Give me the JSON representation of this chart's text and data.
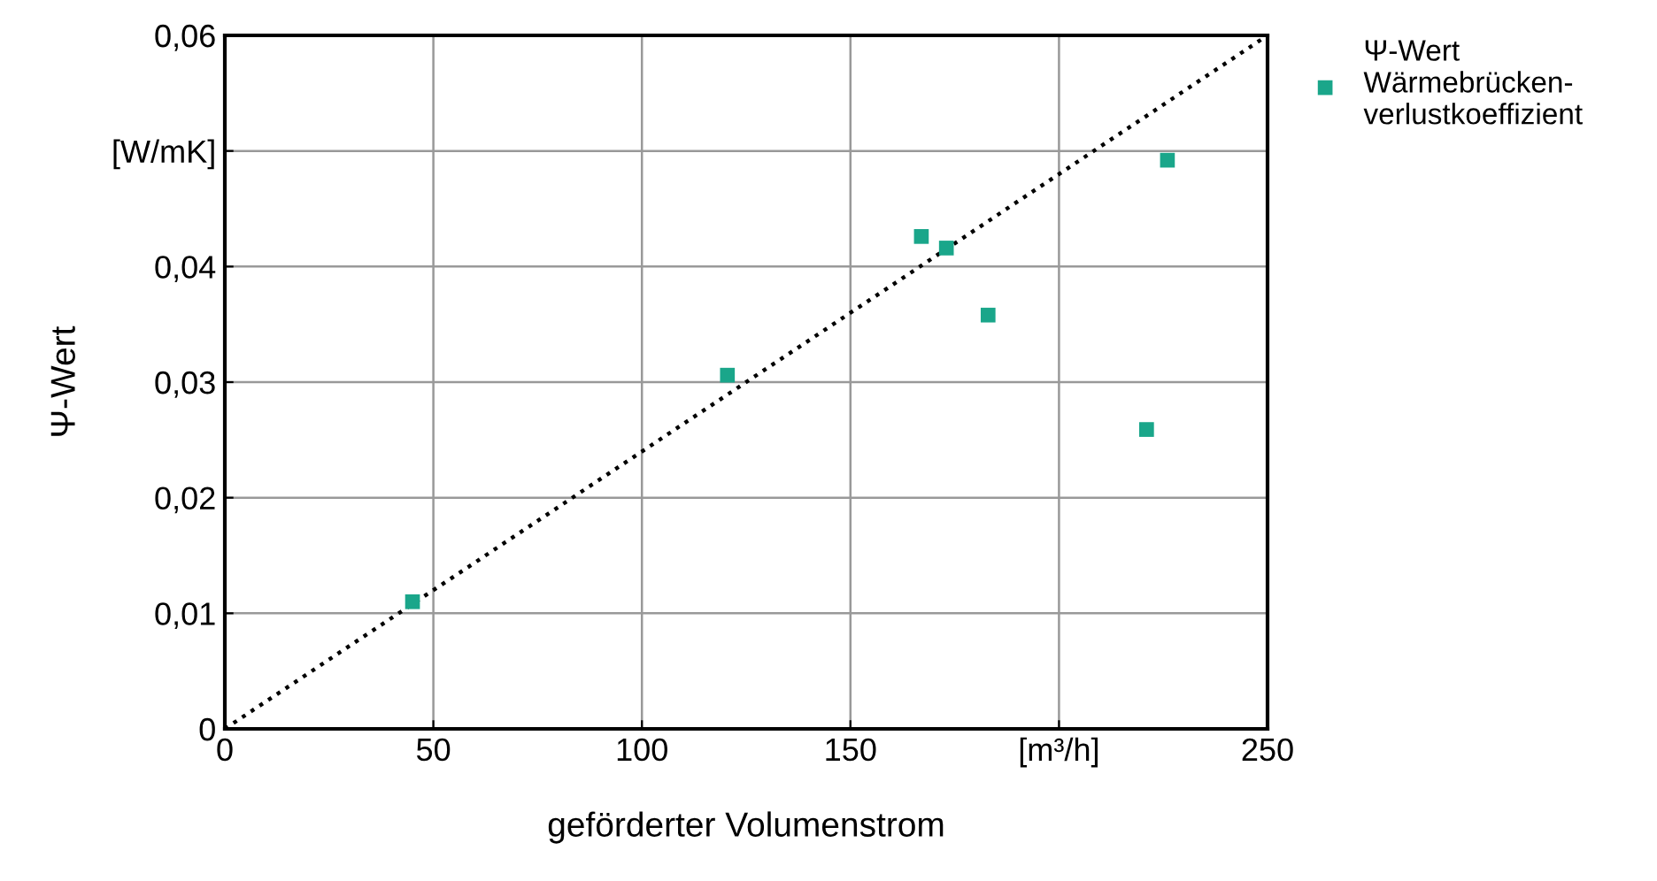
{
  "chart_data": {
    "type": "scatter",
    "xlabel": "geförderter Volumenstrom",
    "ylabel": "Ψ-Wert",
    "xlim": [
      0,
      250
    ],
    "ylim": [
      0,
      0.06
    ],
    "xticks": [
      0,
      50,
      100,
      150,
      {
        "value": 200,
        "label": "[m³/h]"
      },
      250
    ],
    "yticks": [
      0,
      {
        "value": 0.01,
        "label": "0,01"
      },
      {
        "value": 0.02,
        "label": "0,02"
      },
      {
        "value": 0.03,
        "label": "0,03"
      },
      {
        "value": 0.04,
        "label": "0,04"
      },
      {
        "value": 0.05,
        "label": "[W/mK]"
      },
      {
        "value": 0.06,
        "label": "0,06"
      }
    ],
    "grid": true,
    "legend": "top right",
    "series": [
      {
        "name": "Ψ-Wert\nWärmebrücken-\nverlustkoeffizient",
        "marker": "square",
        "color": "#1aa68a",
        "x": [
          45,
          120.5,
          167,
          173,
          183,
          221,
          226
        ],
        "values": [
          0.011,
          0.0306,
          0.0426,
          0.0416,
          0.0358,
          0.0259,
          0.0492
        ]
      },
      {
        "type": "line",
        "line_style": "dotted",
        "marker": "none",
        "color": "#000000",
        "x": [
          0,
          250
        ],
        "values": [
          0,
          0.06
        ]
      }
    ]
  }
}
